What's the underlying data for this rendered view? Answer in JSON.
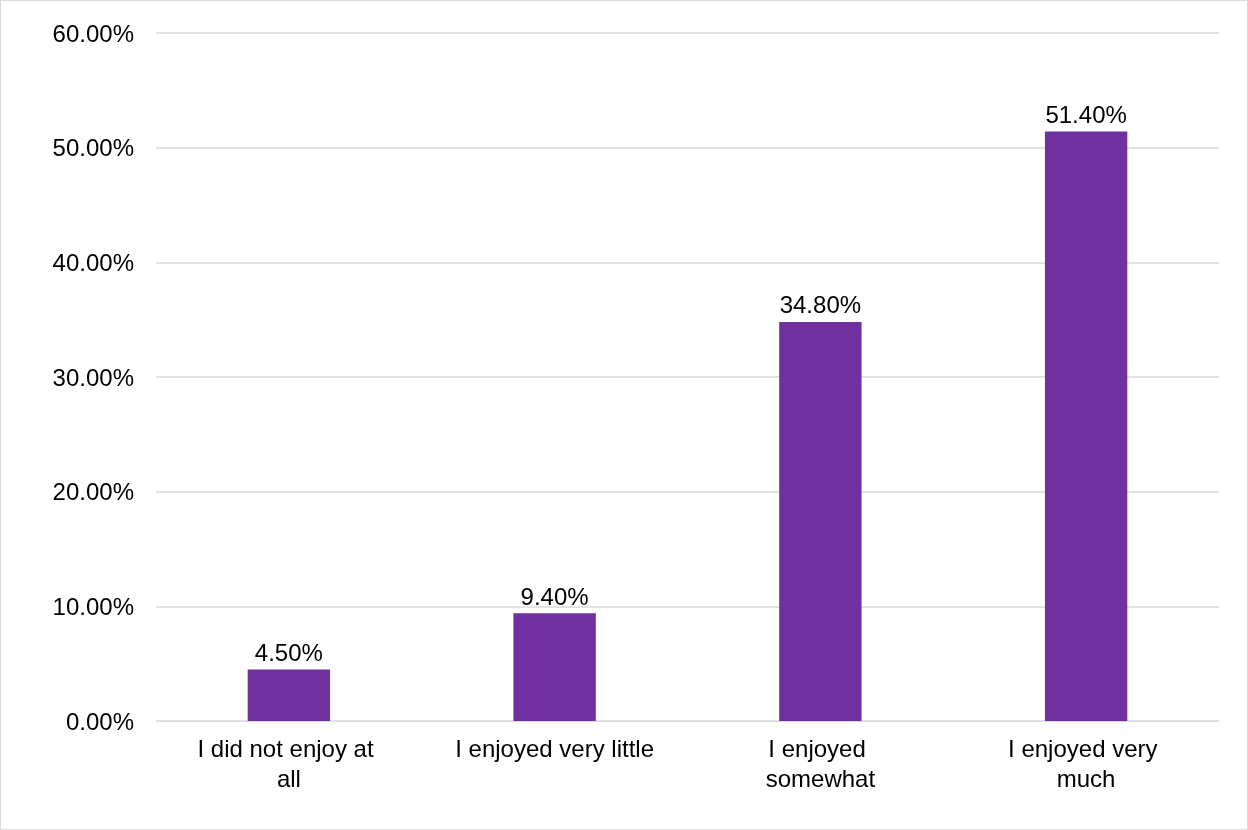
{
  "chart_data": {
    "type": "bar",
    "categories": [
      "I did not enjoy at all",
      "I enjoyed very little",
      "I enjoyed somewhat",
      "I enjoyed very much"
    ],
    "values": [
      4.5,
      9.4,
      34.8,
      51.4
    ],
    "color": "#7030a0",
    "value_labels": [
      "4.50%",
      "9.40%",
      "34.80%",
      "51.40%"
    ],
    "ylim": [
      0,
      60
    ],
    "yticks": [
      {
        "value": 0,
        "label": "0.00%"
      },
      {
        "value": 10,
        "label": "10.00%"
      },
      {
        "value": 20,
        "label": "20.00%"
      },
      {
        "value": 30,
        "label": "30.00%"
      },
      {
        "value": 40,
        "label": "40.00%"
      },
      {
        "value": 50,
        "label": "50.00%"
      },
      {
        "value": 60,
        "label": "60.00%"
      }
    ],
    "grid": "y"
  }
}
